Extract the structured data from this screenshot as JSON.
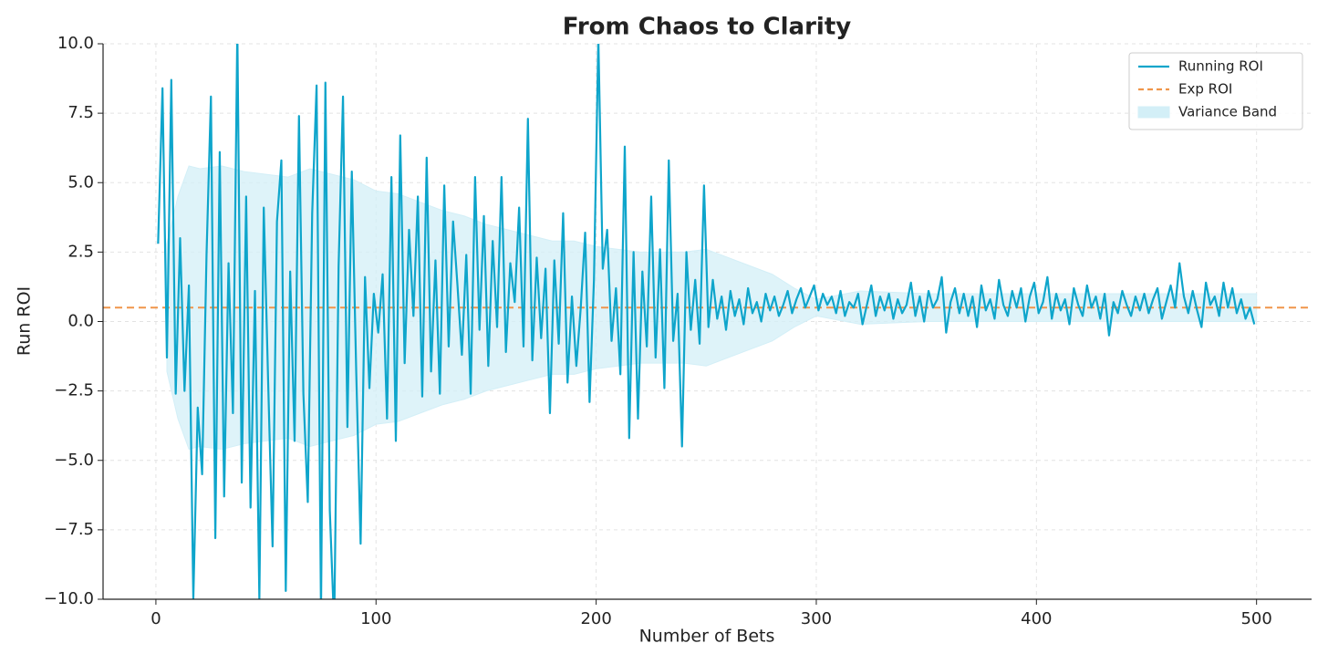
{
  "chart_data": {
    "type": "line",
    "title": "From Chaos to Clarity",
    "xlabel": "Number of Bets",
    "ylabel": "Run ROI",
    "xlim": [
      -24,
      525
    ],
    "ylim": [
      -10,
      10
    ],
    "xticks": [
      0,
      100,
      200,
      300,
      400,
      500
    ],
    "yticks": [
      {
        "value": -10,
        "label": "−10.0"
      },
      {
        "value": -7.5,
        "label": "−7.5"
      },
      {
        "value": -5,
        "label": "−5.0"
      },
      {
        "value": -2.5,
        "label": "−2.5"
      },
      {
        "value": 0,
        "label": "0.0"
      },
      {
        "value": 2.5,
        "label": "2.5"
      },
      {
        "value": 5,
        "label": "5.0"
      },
      {
        "value": 7.5,
        "label": "7.5"
      },
      {
        "value": 10,
        "label": "10.0"
      }
    ],
    "grid": true,
    "legend": "upper right",
    "x": [
      1,
      3,
      5,
      7,
      9,
      11,
      13,
      15,
      17,
      19,
      21,
      23,
      25,
      27,
      29,
      31,
      33,
      35,
      37,
      39,
      41,
      43,
      45,
      47,
      49,
      51,
      53,
      55,
      57,
      59,
      61,
      63,
      65,
      67,
      69,
      71,
      73,
      75,
      77,
      79,
      81,
      83,
      85,
      87,
      89,
      91,
      93,
      95,
      97,
      99,
      101,
      103,
      105,
      107,
      109,
      111,
      113,
      115,
      117,
      119,
      121,
      123,
      125,
      127,
      129,
      131,
      133,
      135,
      137,
      139,
      141,
      143,
      145,
      147,
      149,
      151,
      153,
      155,
      157,
      159,
      161,
      163,
      165,
      167,
      169,
      171,
      173,
      175,
      177,
      179,
      181,
      183,
      185,
      187,
      189,
      191,
      193,
      195,
      197,
      199,
      201,
      203,
      205,
      207,
      209,
      211,
      213,
      215,
      217,
      219,
      221,
      223,
      225,
      227,
      229,
      231,
      233,
      235,
      237,
      239,
      241,
      243,
      245,
      247,
      249,
      251,
      253,
      255,
      257,
      259,
      261,
      263,
      265,
      267,
      269,
      271,
      273,
      275,
      277,
      279,
      281,
      283,
      285,
      287,
      289,
      291,
      293,
      295,
      297,
      299,
      301,
      303,
      305,
      307,
      309,
      311,
      313,
      315,
      317,
      319,
      321,
      323,
      325,
      327,
      329,
      331,
      333,
      335,
      337,
      339,
      341,
      343,
      345,
      347,
      349,
      351,
      353,
      355,
      357,
      359,
      361,
      363,
      365,
      367,
      369,
      371,
      373,
      375,
      377,
      379,
      381,
      383,
      385,
      387,
      389,
      391,
      393,
      395,
      397,
      399,
      401,
      403,
      405,
      407,
      409,
      411,
      413,
      415,
      417,
      419,
      421,
      423,
      425,
      427,
      429,
      431,
      433,
      435,
      437,
      439,
      441,
      443,
      445,
      447,
      449,
      451,
      453,
      455,
      457,
      459,
      461,
      463,
      465,
      467,
      469,
      471,
      473,
      475,
      477,
      479,
      481,
      483,
      485,
      487,
      489,
      491,
      493,
      495,
      497,
      499
    ],
    "series": [
      {
        "name": "Running ROI",
        "color": "#0ea5cb",
        "values": [
          2.8,
          8.4,
          -1.3,
          8.7,
          -2.6,
          3.0,
          -2.5,
          1.3,
          -10,
          -3.1,
          -5.5,
          2.4,
          8.1,
          -7.8,
          6.1,
          -6.3,
          2.1,
          -3.3,
          10.5,
          -5.8,
          4.5,
          -6.7,
          1.1,
          -10,
          4.1,
          -2.2,
          -8.1,
          3.6,
          5.8,
          -9.7,
          1.8,
          -4.3,
          7.4,
          -2.6,
          -6.5,
          3.9,
          8.5,
          -10.5,
          8.6,
          -6.8,
          -11,
          2.0,
          8.1,
          -3.8,
          5.4,
          -1.8,
          -8.0,
          1.6,
          -2.4,
          1.0,
          -0.4,
          1.7,
          -3.5,
          5.2,
          -4.3,
          6.7,
          -1.5,
          3.3,
          0.2,
          4.5,
          -2.7,
          5.9,
          -1.8,
          2.2,
          -2.6,
          4.9,
          -0.9,
          3.6,
          1.3,
          -1.2,
          2.4,
          -2.6,
          5.2,
          -0.3,
          3.8,
          -1.6,
          2.9,
          -0.2,
          5.2,
          -1.1,
          2.1,
          0.7,
          4.1,
          -0.9,
          7.3,
          -1.4,
          2.3,
          -0.6,
          1.9,
          -3.3,
          2.2,
          -0.8,
          3.9,
          -2.2,
          0.9,
          -1.6,
          0.5,
          3.2,
          -2.9,
          1.5,
          10.2,
          1.9,
          3.3,
          -0.7,
          1.2,
          -1.9,
          6.3,
          -4.2,
          2.5,
          -3.5,
          1.8,
          -0.9,
          4.5,
          -1.3,
          2.6,
          -2.4,
          5.8,
          -0.7,
          1.0,
          -4.5,
          2.5,
          -0.3,
          1.5,
          -0.8,
          4.9,
          -0.2,
          1.5,
          0.1,
          0.9,
          -0.3,
          1.1,
          0.2,
          0.8,
          -0.1,
          1.2,
          0.3,
          0.7,
          0.0,
          1.0,
          0.4,
          0.9,
          0.2,
          0.6,
          1.1,
          0.3,
          0.8,
          1.2,
          0.5,
          0.9,
          1.3,
          0.4,
          1.0,
          0.6,
          0.9,
          0.3,
          1.1,
          0.2,
          0.7,
          0.5,
          1.0,
          -0.1,
          0.6,
          1.3,
          0.2,
          0.9,
          0.4,
          1.0,
          0.1,
          0.8,
          0.3,
          0.6,
          1.4,
          0.2,
          0.9,
          0.0,
          1.1,
          0.5,
          0.8,
          1.6,
          -0.4,
          0.7,
          1.2,
          0.3,
          1.0,
          0.2,
          0.9,
          -0.2,
          1.3,
          0.4,
          0.8,
          0.1,
          1.5,
          0.6,
          0.2,
          1.1,
          0.5,
          1.2,
          0.0,
          0.9,
          1.4,
          0.3,
          0.7,
          1.6,
          0.1,
          1.0,
          0.4,
          0.8,
          -0.1,
          1.2,
          0.6,
          0.2,
          1.3,
          0.5,
          0.9,
          0.1,
          1.0,
          -0.5,
          0.7,
          0.3,
          1.1,
          0.6,
          0.2,
          0.9,
          0.4,
          1.0,
          0.3,
          0.8,
          1.2,
          0.1,
          0.7,
          1.3,
          0.5,
          2.1,
          0.9,
          0.3,
          1.1,
          0.4,
          -0.2,
          1.4,
          0.6,
          0.9,
          0.2,
          1.4,
          0.5,
          1.2,
          0.3,
          0.8,
          0.1,
          0.5,
          -0.1
        ]
      }
    ],
    "expected": {
      "name": "Exp ROI",
      "value": 0.5,
      "color": "#f0954a"
    },
    "band": {
      "name": "Variance Band",
      "color": "#d3eff7",
      "x": [
        5,
        10,
        15,
        20,
        30,
        40,
        50,
        60,
        70,
        80,
        90,
        100,
        110,
        120,
        130,
        140,
        150,
        160,
        170,
        180,
        190,
        200,
        210,
        220,
        230,
        240,
        250,
        260,
        270,
        280,
        290,
        300,
        320,
        350,
        400,
        450,
        500
      ],
      "upper": [
        2.8,
        4.5,
        5.6,
        5.5,
        5.6,
        5.4,
        5.3,
        5.2,
        5.5,
        5.3,
        5.1,
        4.7,
        4.6,
        4.3,
        4.0,
        3.8,
        3.5,
        3.3,
        3.1,
        2.9,
        2.9,
        2.7,
        2.6,
        2.5,
        2.5,
        2.5,
        2.6,
        2.3,
        2.0,
        1.7,
        1.2,
        0.8,
        1.1,
        1.0,
        1.0,
        1.0,
        1.0
      ],
      "lower": [
        -1.8,
        -3.5,
        -4.6,
        -4.5,
        -4.6,
        -4.4,
        -4.3,
        -4.2,
        -4.5,
        -4.3,
        -4.1,
        -3.7,
        -3.6,
        -3.3,
        -3.0,
        -2.8,
        -2.5,
        -2.3,
        -2.1,
        -1.9,
        -1.9,
        -1.7,
        -1.6,
        -1.5,
        -1.5,
        -1.5,
        -1.6,
        -1.3,
        -1.0,
        -0.7,
        -0.2,
        0.2,
        -0.1,
        0,
        0,
        0,
        0
      ]
    }
  }
}
